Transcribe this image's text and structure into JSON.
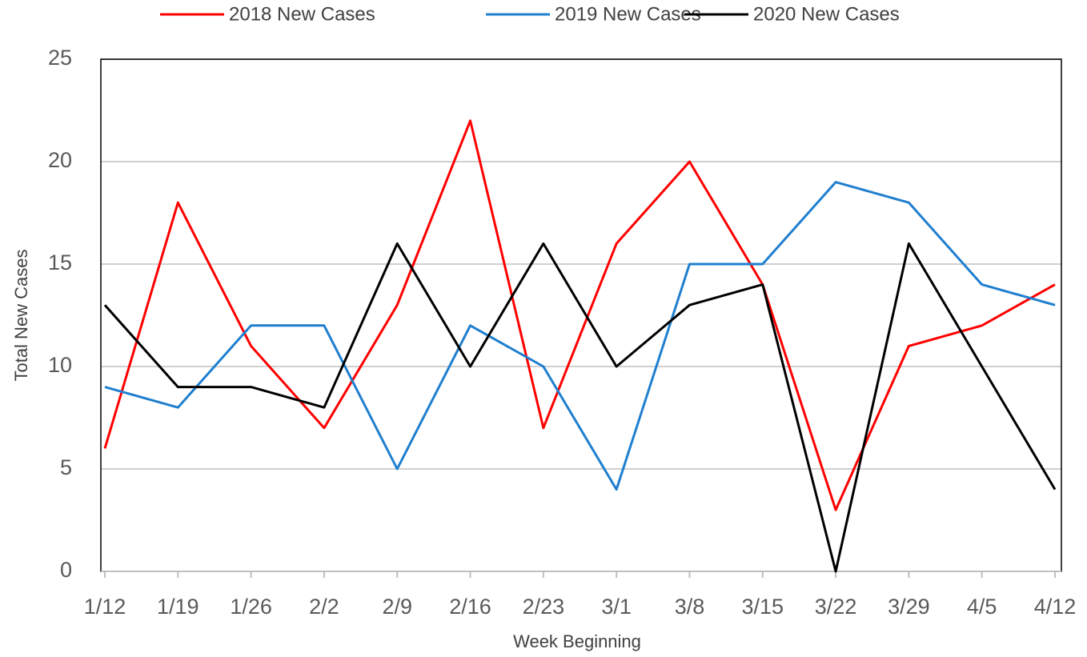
{
  "chart_data": {
    "type": "line",
    "xlabel": "Week Beginning",
    "ylabel": "Total New Cases",
    "categories": [
      "1/12",
      "1/19",
      "1/26",
      "2/2",
      "2/9",
      "2/16",
      "2/23",
      "3/1",
      "3/8",
      "3/15",
      "3/22",
      "3/29",
      "4/5",
      "4/12"
    ],
    "series": [
      {
        "name": "2018 New Cases",
        "color": "#ff0000",
        "values": [
          6,
          18,
          11,
          7,
          13,
          22,
          7,
          16,
          20,
          14,
          3,
          11,
          12,
          14
        ]
      },
      {
        "name": "2019 New Cases",
        "color": "#1f7fcf",
        "values": [
          9,
          8,
          12,
          12,
          5,
          12,
          10,
          4,
          15,
          15,
          19,
          18,
          14,
          13
        ]
      },
      {
        "name": "2020 New Cases",
        "color": "#000000",
        "values": [
          13,
          9,
          9,
          8,
          16,
          10,
          16,
          10,
          13,
          14,
          0,
          16,
          10,
          4
        ]
      }
    ],
    "ylim": [
      0,
      25
    ],
    "yticks": [
      0,
      5,
      10,
      15,
      20,
      25
    ],
    "grid": true,
    "legend": "top"
  }
}
